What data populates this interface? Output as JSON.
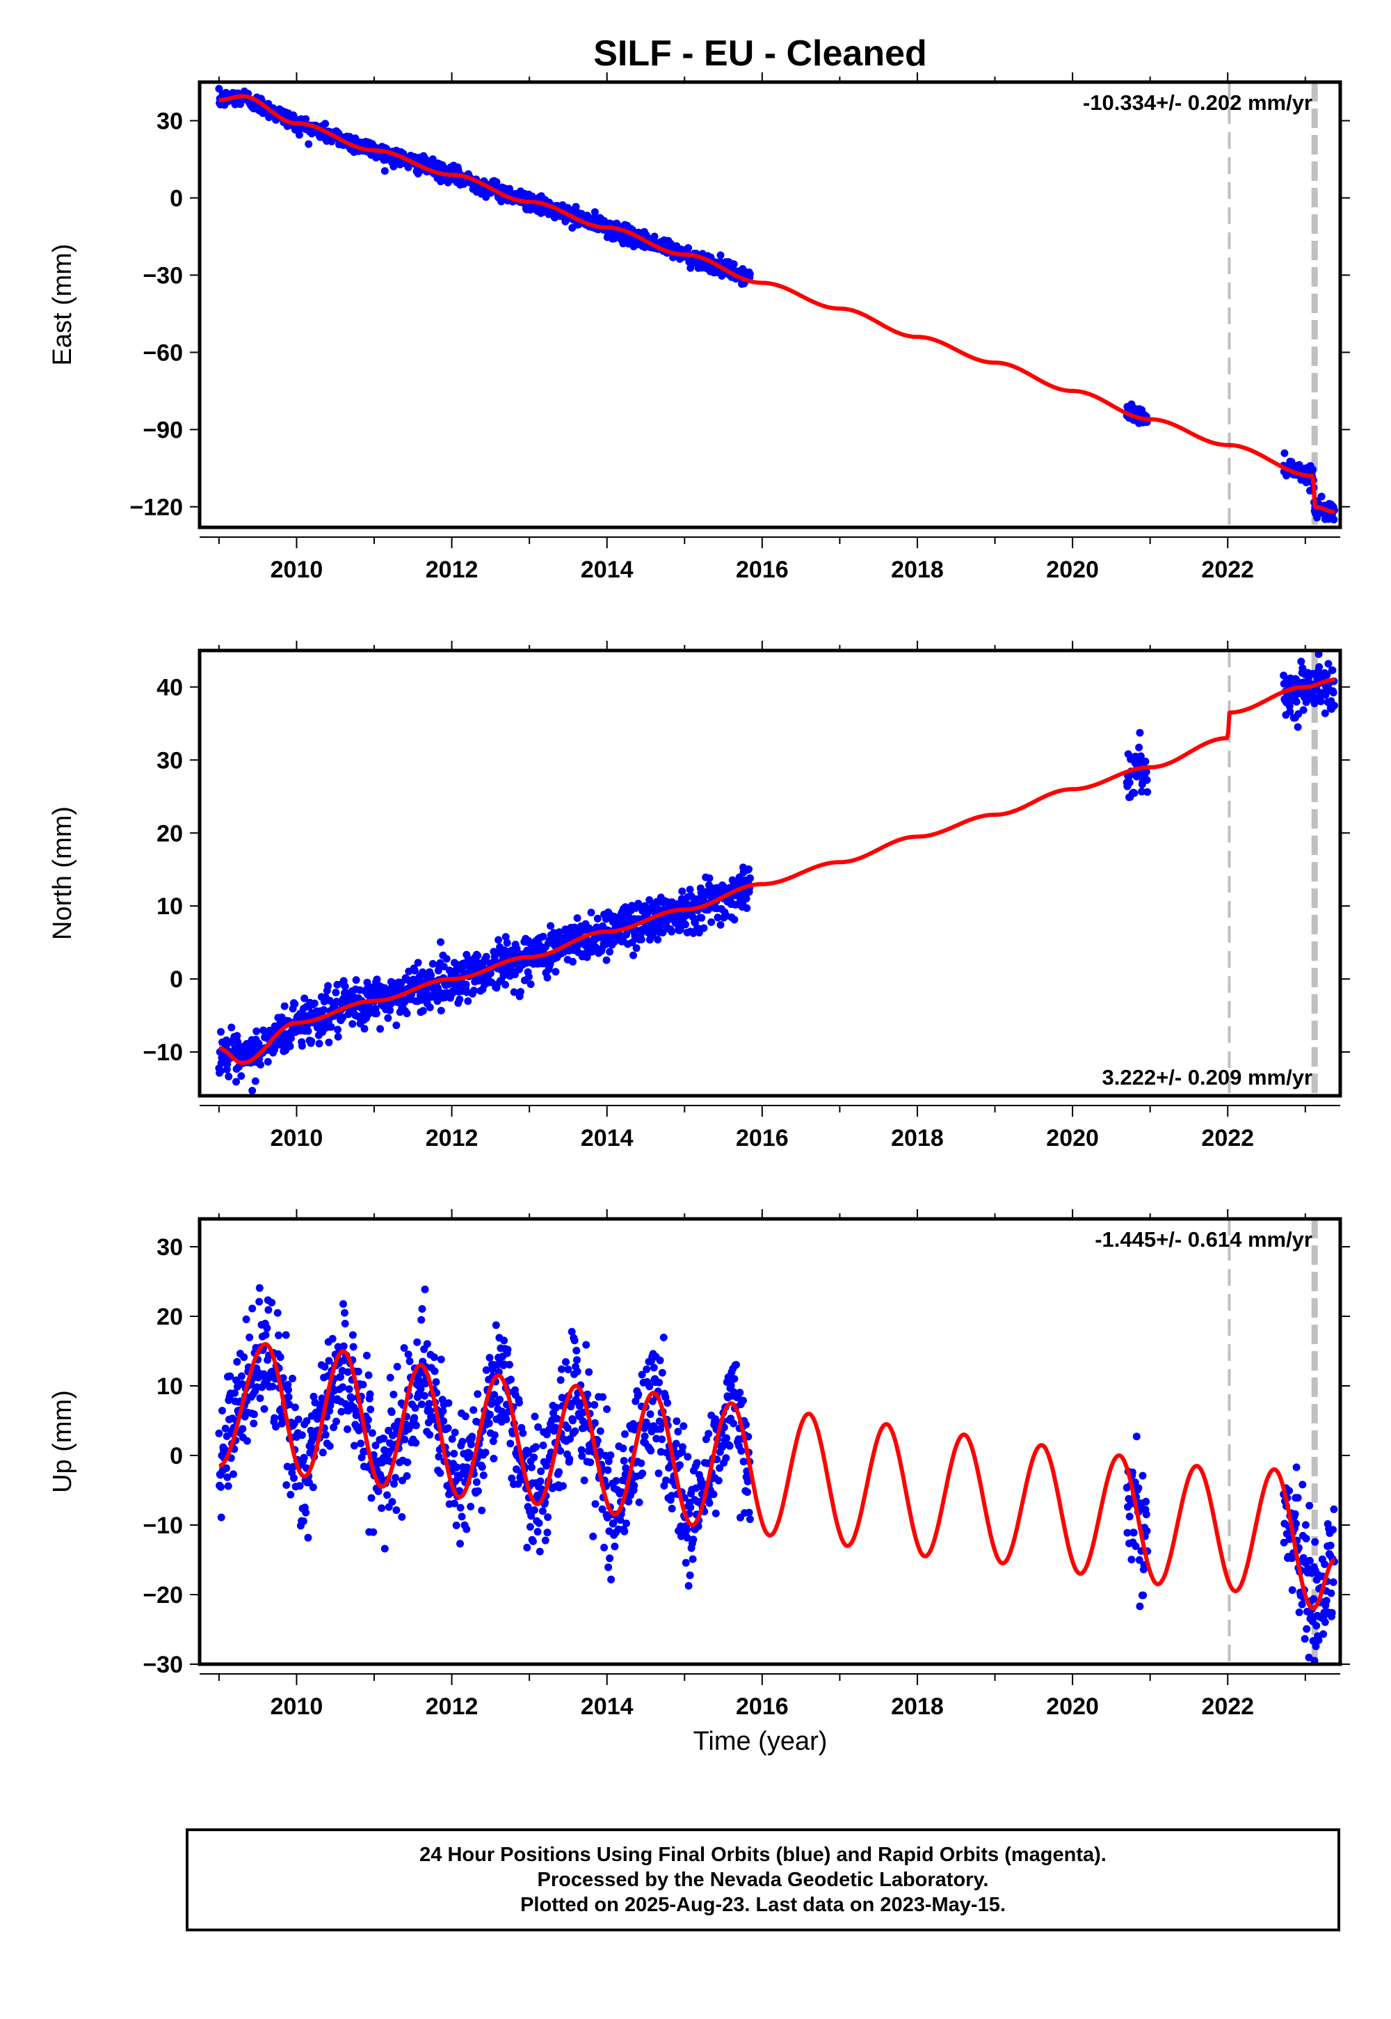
{
  "title": "SILF  - EU - Cleaned",
  "x_axis_label": "Time (year)",
  "footer": {
    "line1": "24 Hour Positions Using Final Orbits (blue) and Rapid Orbits (magenta).",
    "line2": "Processed by the Nevada Geodetic Laboratory.",
    "line3": "Plotted on 2025-Aug-23. Last data on 2023-May-15."
  },
  "colors": {
    "data_points": "#0000ff",
    "model": "#ff0000",
    "event_lines": "#c0c0c0",
    "axes": "#000000"
  },
  "chart_data": [
    {
      "type": "scatter",
      "ylabel": "East (mm)",
      "rate_label": "-10.334+/- 0.202 mm/yr",
      "rate_position": "top-right",
      "xlim": [
        2008.75,
        2023.45
      ],
      "ylim": [
        -128,
        45
      ],
      "x_ticks": [
        2010,
        2012,
        2014,
        2016,
        2018,
        2020,
        2022
      ],
      "y_ticks": [
        -120,
        -90,
        -60,
        -30,
        0,
        30
      ],
      "y_tick_labels": [
        "−120",
        "−90",
        "−60",
        "−30",
        "0",
        "30"
      ],
      "event_lines": [
        {
          "x": 2022.02,
          "style": "thin-dashed"
        },
        {
          "x": 2023.12,
          "style": "thick-dashed"
        }
      ],
      "data_segments": [
        [
          2009.0,
          2015.85
        ],
        [
          2020.7,
          2020.97
        ],
        [
          2022.72,
          2023.12
        ],
        [
          2023.12,
          2023.38
        ]
      ],
      "model": {
        "offset": 38,
        "trend_per_year": -10.334,
        "annual_amplitude": 1.8,
        "annual_phase": 0.3,
        "steps": [
          {
            "t": 2023.12,
            "dy": -12
          }
        ],
        "points": [
          [
            2009.0,
            38
          ],
          [
            2009.3,
            39.5
          ],
          [
            2010.0,
            29
          ],
          [
            2011.0,
            18.5
          ],
          [
            2012.0,
            9
          ],
          [
            2013.0,
            -1.5
          ],
          [
            2014.0,
            -11.5
          ],
          [
            2015.0,
            -22
          ],
          [
            2016.0,
            -33
          ],
          [
            2017.0,
            -43
          ],
          [
            2018.0,
            -54
          ],
          [
            2019.0,
            -64
          ],
          [
            2020.0,
            -75
          ],
          [
            2021.0,
            -86
          ],
          [
            2022.0,
            -96
          ],
          [
            2023.1,
            -108
          ],
          [
            2023.12,
            -120
          ],
          [
            2023.38,
            -122
          ]
        ]
      },
      "scatter": {
        "noise": 1.6,
        "density_per_year": 120
      }
    },
    {
      "type": "scatter",
      "ylabel": "North (mm)",
      "rate_label": "3.222+/- 0.209 mm/yr",
      "rate_position": "bottom-right",
      "xlim": [
        2008.75,
        2023.45
      ],
      "ylim": [
        -16,
        45
      ],
      "x_ticks": [
        2010,
        2012,
        2014,
        2016,
        2018,
        2020,
        2022
      ],
      "y_ticks": [
        -10,
        0,
        10,
        20,
        30,
        40
      ],
      "y_tick_labels": [
        "−10",
        "0",
        "10",
        "20",
        "30",
        "40"
      ],
      "event_lines": [
        {
          "x": 2022.02,
          "style": "thin-dashed"
        },
        {
          "x": 2023.12,
          "style": "thick-dashed"
        }
      ],
      "data_segments": [
        [
          2009.0,
          2015.85
        ],
        [
          2020.7,
          2020.97
        ],
        [
          2022.72,
          2023.38
        ]
      ],
      "model": {
        "offset": -9.5,
        "trend_per_year": 3.222,
        "annual_amplitude": 1.6,
        "annual_phase": 0.05,
        "steps": [
          {
            "t": 2022.02,
            "dy": 3.5
          }
        ],
        "points": [
          [
            2009.0,
            -9.5
          ],
          [
            2009.3,
            -11.5
          ],
          [
            2010.0,
            -6
          ],
          [
            2011.0,
            -3
          ],
          [
            2012.0,
            0
          ],
          [
            2013.0,
            3
          ],
          [
            2014.0,
            6.5
          ],
          [
            2015.0,
            9.5
          ],
          [
            2016.0,
            13
          ],
          [
            2017.0,
            16
          ],
          [
            2018.0,
            19.5
          ],
          [
            2019.0,
            22.5
          ],
          [
            2020.0,
            26
          ],
          [
            2021.0,
            29
          ],
          [
            2022.0,
            33
          ],
          [
            2022.02,
            36.5
          ],
          [
            2023.0,
            40
          ],
          [
            2023.38,
            41
          ]
        ]
      },
      "scatter": {
        "noise": 1.6,
        "density_per_year": 120
      }
    },
    {
      "type": "scatter",
      "ylabel": "Up (mm)",
      "rate_label": "-1.445+/- 0.614 mm/yr",
      "rate_position": "top-right",
      "xlim": [
        2008.75,
        2023.45
      ],
      "ylim": [
        -30,
        34
      ],
      "x_ticks": [
        2010,
        2012,
        2014,
        2016,
        2018,
        2020,
        2022
      ],
      "y_ticks": [
        -30,
        -20,
        -10,
        0,
        10,
        20,
        30
      ],
      "y_tick_labels": [
        "−30",
        "−20",
        "−10",
        "0",
        "10",
        "20",
        "30"
      ],
      "event_lines": [
        {
          "x": 2022.02,
          "style": "thin-dashed"
        },
        {
          "x": 2023.12,
          "style": "thick-dashed"
        }
      ],
      "data_segments": [
        [
          2009.0,
          2015.85
        ],
        [
          2020.7,
          2020.97
        ],
        [
          2022.72,
          2023.38
        ]
      ],
      "model": {
        "offset": 2.5,
        "trend_per_year": -1.445,
        "annual_amplitude": 8.5,
        "annual_phase": 0.35,
        "steps": [],
        "points": [
          [
            2009.0,
            -1.5
          ],
          [
            2009.6,
            16
          ],
          [
            2010.1,
            -3
          ],
          [
            2010.6,
            15
          ],
          [
            2011.1,
            -4.5
          ],
          [
            2011.6,
            13
          ],
          [
            2012.1,
            -6
          ],
          [
            2012.6,
            11.5
          ],
          [
            2013.1,
            -7
          ],
          [
            2013.6,
            10
          ],
          [
            2014.1,
            -8.5
          ],
          [
            2014.6,
            9
          ],
          [
            2015.1,
            -10
          ],
          [
            2015.6,
            7.5
          ],
          [
            2016.1,
            -11.5
          ],
          [
            2016.6,
            6
          ],
          [
            2017.1,
            -13
          ],
          [
            2017.6,
            4.5
          ],
          [
            2018.1,
            -14.5
          ],
          [
            2018.6,
            3
          ],
          [
            2019.1,
            -15.5
          ],
          [
            2019.6,
            1.5
          ],
          [
            2020.1,
            -17
          ],
          [
            2020.6,
            0
          ],
          [
            2021.1,
            -18.5
          ],
          [
            2021.6,
            -1.5
          ],
          [
            2022.1,
            -19.5
          ],
          [
            2022.6,
            -2
          ],
          [
            2023.1,
            -22
          ],
          [
            2023.38,
            -15
          ]
        ]
      },
      "scatter": {
        "noise": 4.5,
        "density_per_year": 120
      }
    }
  ]
}
